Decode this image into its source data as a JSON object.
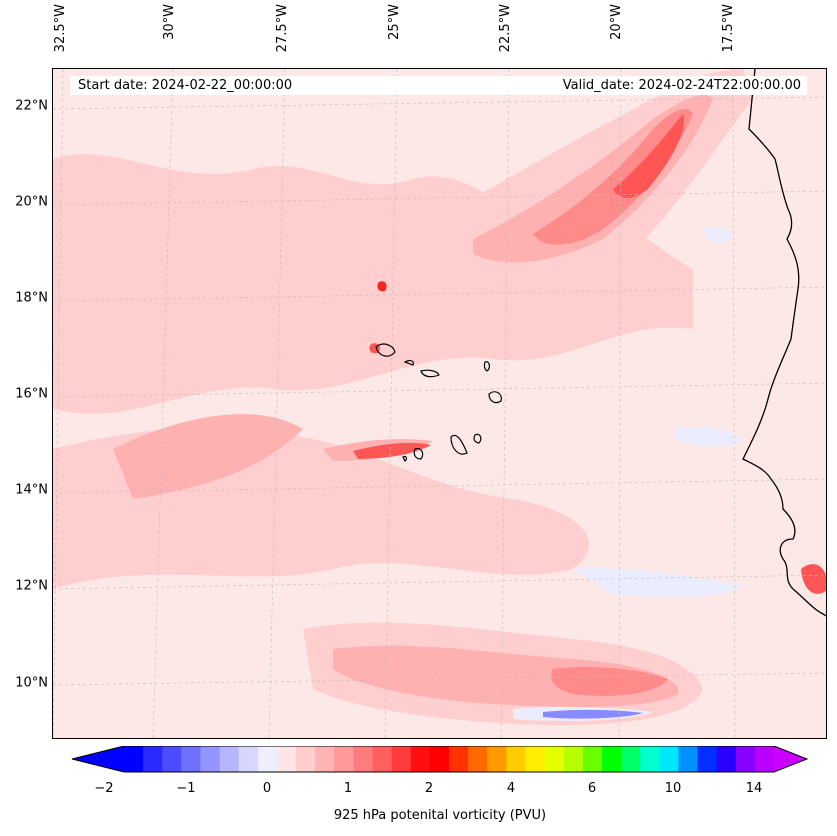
{
  "header": {
    "start_date": "Start date: 2024-02-22_00:00:00",
    "valid_date": "Valid_date: 2024-02-24T22:00:00.00"
  },
  "axes": {
    "latitude_labels": [
      "22°N",
      "20°N",
      "18°N",
      "16°N",
      "14°N",
      "12°N",
      "10°N"
    ],
    "longitude_labels": [
      "32.5°W",
      "30°W",
      "27.5°W",
      "25°W",
      "22.5°W",
      "20°W",
      "17.5°W"
    ]
  },
  "colorbar": {
    "title": "925 hPa potenital vorticity (PVU)",
    "tick_labels": [
      "−2",
      "−1",
      "0",
      "1",
      "2",
      "4",
      "6",
      "10",
      "14"
    ],
    "colors": [
      "#0000ff",
      "#2a2aff",
      "#4d4dff",
      "#7070ff",
      "#9494ff",
      "#b6b6ff",
      "#d6d6ff",
      "#eeeeff",
      "#ffe6e6",
      "#ffcccc",
      "#ffb3b3",
      "#ff9898",
      "#ff7c7c",
      "#ff5f5f",
      "#ff3b3b",
      "#ff1010",
      "#ff0000",
      "#ff3300",
      "#ff6a00",
      "#ff9900",
      "#ffcc00",
      "#ffee00",
      "#e5ff00",
      "#b5ff00",
      "#6aff00",
      "#00ff00",
      "#00ff66",
      "#00ffcc",
      "#00e8ff",
      "#0090ff",
      "#0030ff",
      "#2a00ff",
      "#8800ff",
      "#bb00ff"
    ],
    "under_color": "#0000ff",
    "over_color": "#cc00ff"
  },
  "map_colors": {
    "background": "#fde8e8",
    "light_pink": "#ffcfcf",
    "medium_pink": "#ffb0b0",
    "salmon": "#ff8a8a",
    "red": "#ff5555",
    "deep_red": "#ff2222",
    "pale_blue": "#ececff",
    "blue": "#8a8aff",
    "coastline": "#000000"
  }
}
